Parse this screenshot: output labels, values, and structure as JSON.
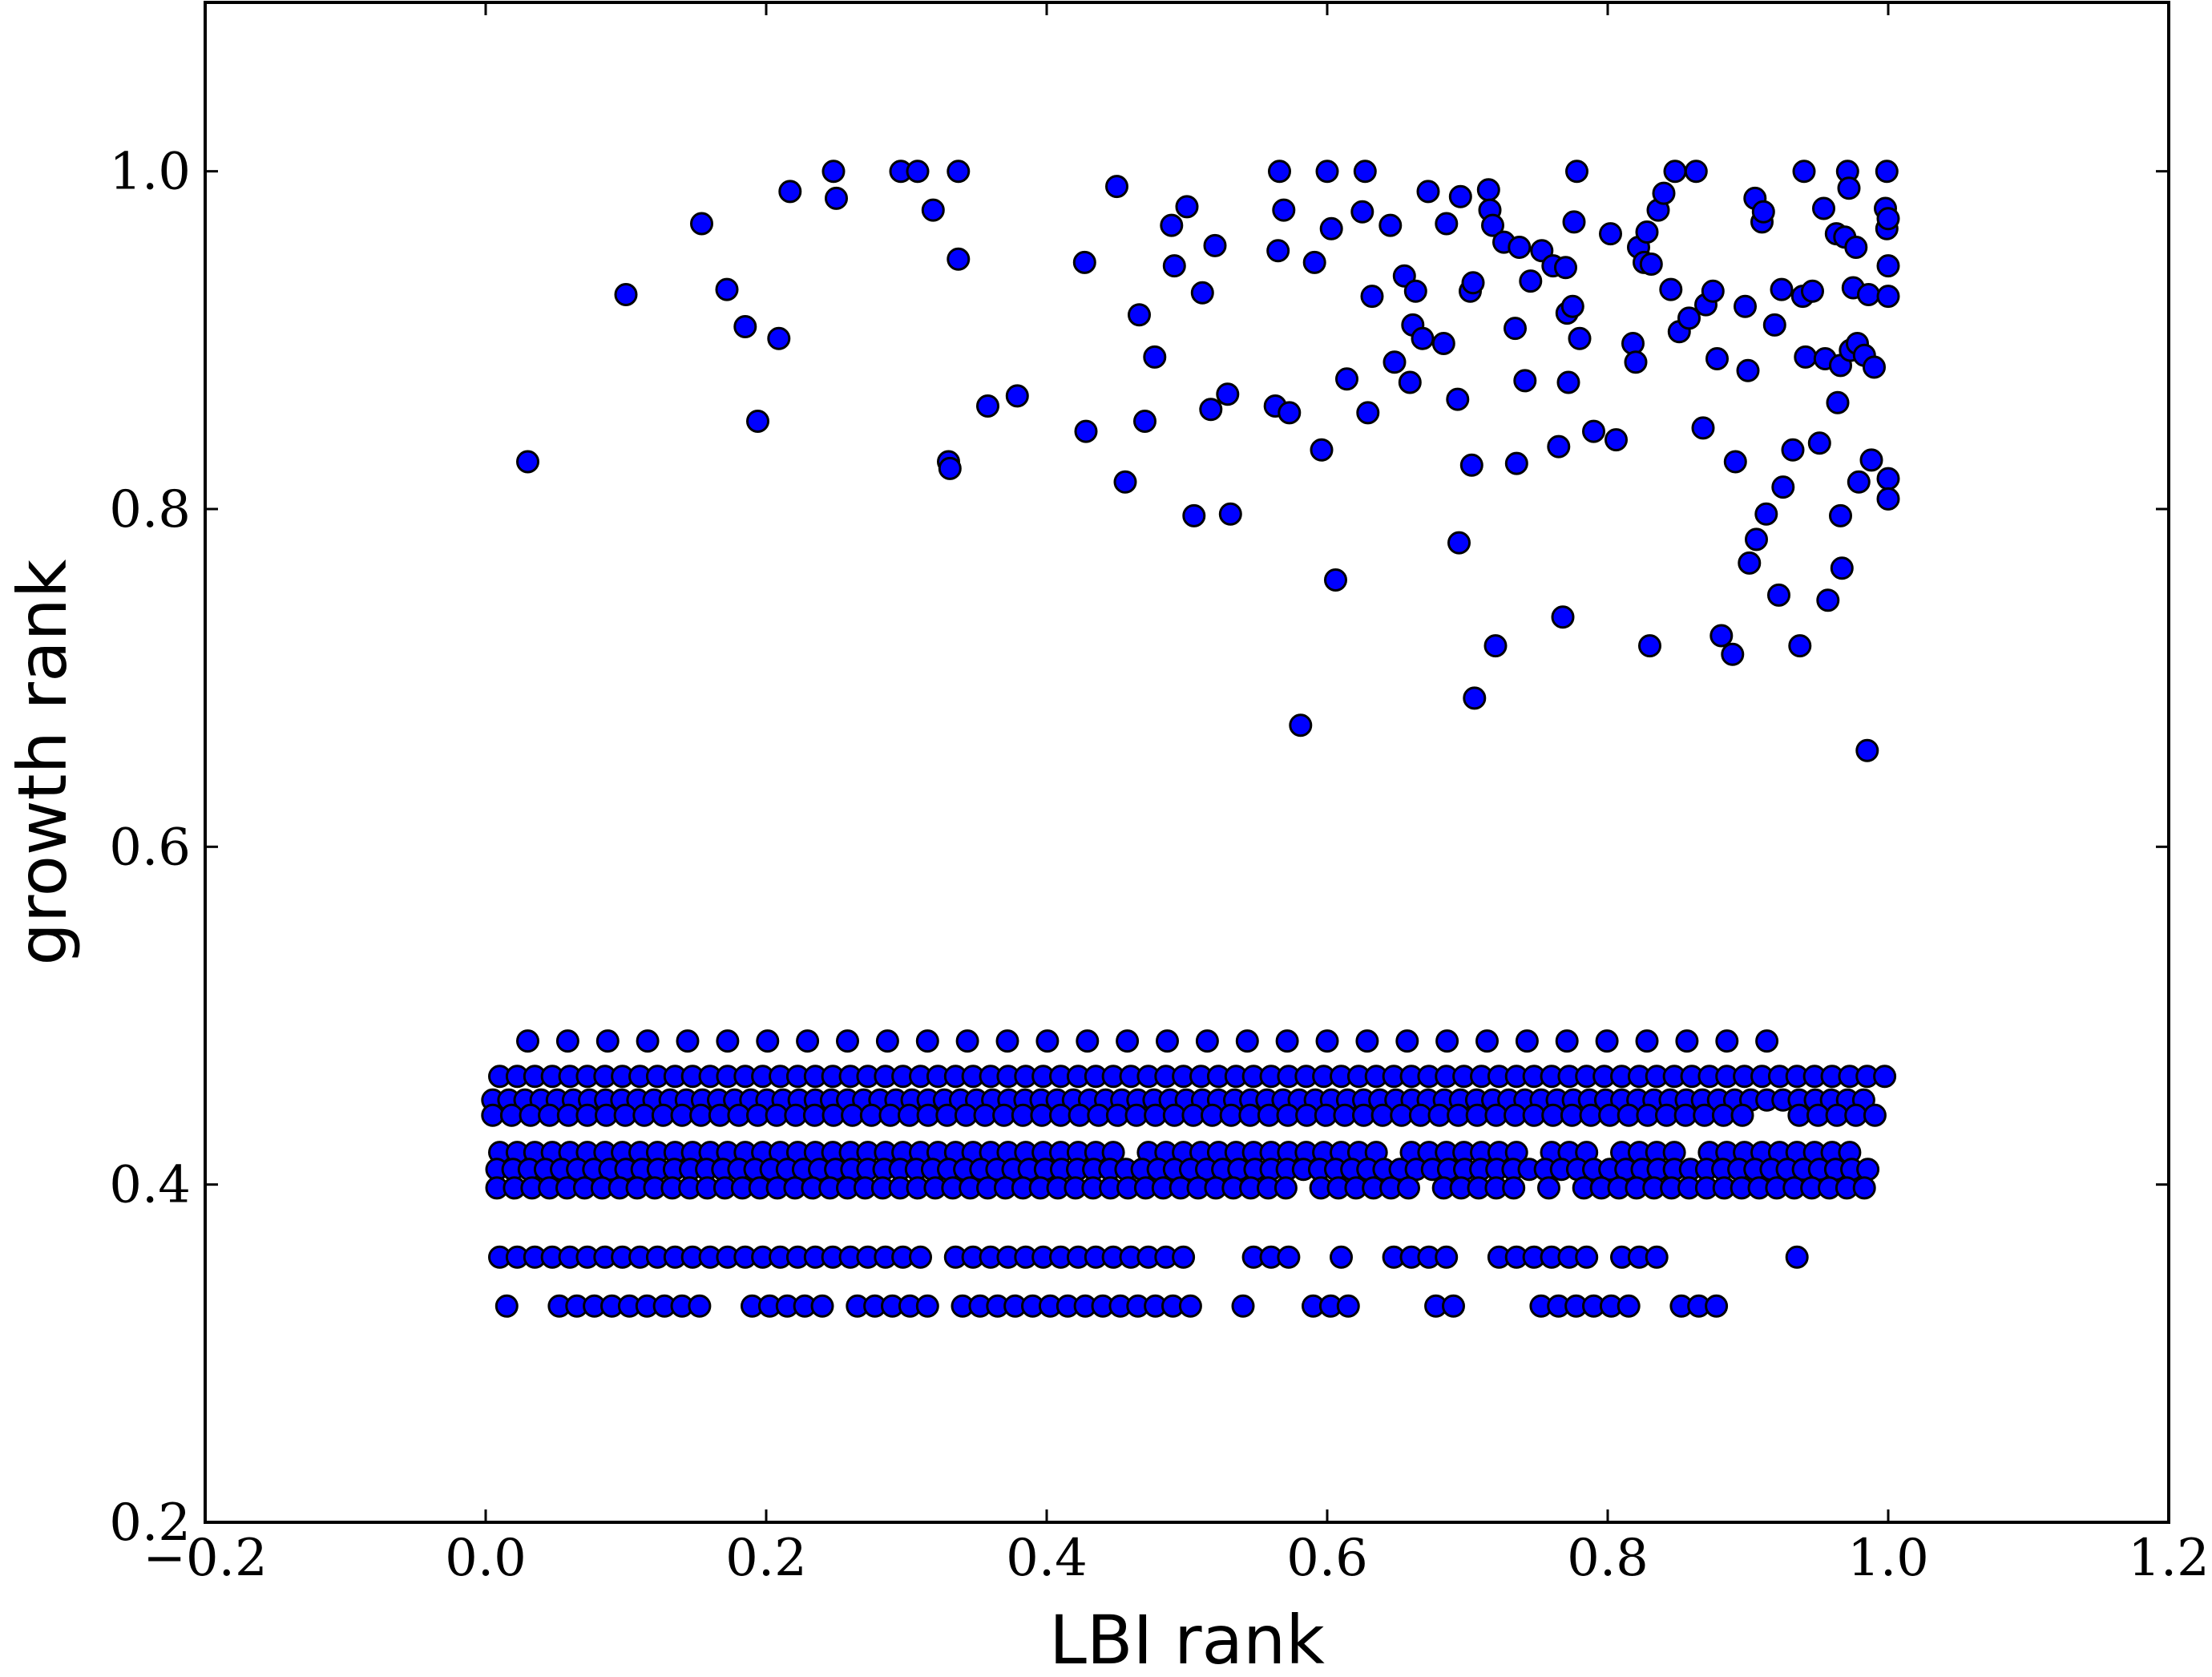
{
  "chart_data": {
    "type": "scatter",
    "title": "",
    "xlabel": "LBI rank",
    "ylabel": "growth rank",
    "xlim": [
      -0.2,
      1.2
    ],
    "ylim": [
      0.2,
      1.1
    ],
    "xticks": [
      -0.2,
      0.0,
      0.2,
      0.4,
      0.6,
      0.8,
      1.0,
      1.2
    ],
    "xtick_labels": [
      "−0.2",
      "0.0",
      "0.2",
      "0.4",
      "0.6",
      "0.8",
      "1.0",
      "1.2"
    ],
    "yticks": [
      0.2,
      0.4,
      0.6,
      0.8,
      1.0
    ],
    "ytick_labels": [
      "0.2",
      "0.4",
      "0.6",
      "0.8",
      "1.0"
    ],
    "grid": false,
    "legend": "none",
    "marker_color": "#0000ff",
    "marker_edge_color": "#000000",
    "points": [
      [
        0.03,
        0.828
      ],
      [
        0.1,
        0.927
      ],
      [
        0.154,
        0.969
      ],
      [
        0.172,
        0.93
      ],
      [
        0.185,
        0.908
      ],
      [
        0.194,
        0.852
      ],
      [
        0.209,
        0.901
      ],
      [
        0.217,
        0.988
      ],
      [
        0.248,
        1.0
      ],
      [
        0.25,
        0.984
      ],
      [
        0.296,
        1.0
      ],
      [
        0.308,
        1.0
      ],
      [
        0.319,
        0.977
      ],
      [
        0.33,
        0.828
      ],
      [
        0.331,
        0.824
      ],
      [
        0.337,
        1.0
      ],
      [
        0.337,
        0.948
      ],
      [
        0.358,
        0.861
      ],
      [
        0.379,
        0.867
      ],
      [
        0.427,
        0.946
      ],
      [
        0.428,
        0.846
      ],
      [
        0.45,
        0.991
      ],
      [
        0.456,
        0.816
      ],
      [
        0.466,
        0.915
      ],
      [
        0.47,
        0.852
      ],
      [
        0.477,
        0.89
      ],
      [
        0.489,
        0.968
      ],
      [
        0.491,
        0.944
      ],
      [
        0.5,
        0.979
      ],
      [
        0.505,
        0.796
      ],
      [
        0.511,
        0.928
      ],
      [
        0.517,
        0.859
      ],
      [
        0.52,
        0.956
      ],
      [
        0.529,
        0.868
      ],
      [
        0.531,
        0.797
      ],
      [
        0.563,
        0.861
      ],
      [
        0.565,
        0.953
      ],
      [
        0.566,
        1.0
      ],
      [
        0.569,
        0.977
      ],
      [
        0.573,
        0.857
      ],
      [
        0.581,
        0.672
      ],
      [
        0.591,
        0.946
      ],
      [
        0.596,
        0.835
      ],
      [
        0.6,
        1.0
      ],
      [
        0.603,
        0.966
      ],
      [
        0.606,
        0.758
      ],
      [
        0.614,
        0.877
      ],
      [
        0.625,
        0.976
      ],
      [
        0.627,
        1.0
      ],
      [
        0.629,
        0.857
      ],
      [
        0.632,
        0.926
      ],
      [
        0.645,
        0.968
      ],
      [
        0.648,
        0.887
      ],
      [
        0.655,
        0.938
      ],
      [
        0.659,
        0.875
      ],
      [
        0.661,
        0.909
      ],
      [
        0.663,
        0.929
      ],
      [
        0.668,
        0.901
      ],
      [
        0.672,
        0.988
      ],
      [
        0.683,
        0.898
      ],
      [
        0.685,
        0.969
      ],
      [
        0.693,
        0.865
      ],
      [
        0.694,
        0.78
      ],
      [
        0.695,
        0.985
      ],
      [
        0.702,
        0.929
      ],
      [
        0.703,
        0.826
      ],
      [
        0.704,
        0.934
      ],
      [
        0.705,
        0.688
      ],
      [
        0.715,
        0.989
      ],
      [
        0.716,
        0.977
      ],
      [
        0.718,
        0.968
      ],
      [
        0.72,
        0.719
      ],
      [
        0.726,
        0.958
      ],
      [
        0.734,
        0.907
      ],
      [
        0.735,
        0.827
      ],
      [
        0.737,
        0.955
      ],
      [
        0.741,
        0.876
      ],
      [
        0.745,
        0.935
      ],
      [
        0.753,
        0.953
      ],
      [
        0.761,
        0.944
      ],
      [
        0.765,
        0.837
      ],
      [
        0.768,
        0.736
      ],
      [
        0.77,
        0.943
      ],
      [
        0.771,
        0.916
      ],
      [
        0.772,
        0.875
      ],
      [
        0.775,
        0.92
      ],
      [
        0.776,
        0.97
      ],
      [
        0.778,
        1.0
      ],
      [
        0.78,
        0.901
      ],
      [
        0.79,
        0.846
      ],
      [
        0.802,
        0.963
      ],
      [
        0.806,
        0.841
      ],
      [
        0.818,
        0.898
      ],
      [
        0.82,
        0.887
      ],
      [
        0.822,
        0.955
      ],
      [
        0.826,
        0.946
      ],
      [
        0.828,
        0.964
      ],
      [
        0.83,
        0.719
      ],
      [
        0.831,
        0.945
      ],
      [
        0.836,
        0.977
      ],
      [
        0.84,
        0.987
      ],
      [
        0.845,
        0.93
      ],
      [
        0.848,
        1.0
      ],
      [
        0.851,
        0.905
      ],
      [
        0.858,
        0.913
      ],
      [
        0.863,
        1.0
      ],
      [
        0.868,
        0.848
      ],
      [
        0.87,
        0.921
      ],
      [
        0.875,
        0.929
      ],
      [
        0.878,
        0.889
      ],
      [
        0.881,
        0.725
      ],
      [
        0.889,
        0.714
      ],
      [
        0.891,
        0.828
      ],
      [
        0.898,
        0.92
      ],
      [
        0.9,
        0.882
      ],
      [
        0.901,
        0.768
      ],
      [
        0.905,
        0.984
      ],
      [
        0.906,
        0.782
      ],
      [
        0.91,
        0.97
      ],
      [
        0.911,
        0.976
      ],
      [
        0.913,
        0.797
      ],
      [
        0.919,
        0.909
      ],
      [
        0.922,
        0.749
      ],
      [
        0.924,
        0.93
      ],
      [
        0.925,
        0.813
      ],
      [
        0.932,
        0.835
      ],
      [
        0.937,
        0.719
      ],
      [
        0.939,
        0.926
      ],
      [
        0.94,
        1.0
      ],
      [
        0.941,
        0.89
      ],
      [
        0.946,
        0.929
      ],
      [
        0.951,
        0.839
      ],
      [
        0.954,
        0.978
      ],
      [
        0.955,
        0.889
      ],
      [
        0.957,
        0.746
      ],
      [
        0.963,
        0.963
      ],
      [
        0.964,
        0.863
      ],
      [
        0.966,
        0.796
      ],
      [
        0.966,
        0.885
      ],
      [
        0.967,
        0.765
      ],
      [
        0.969,
        0.961
      ],
      [
        0.971,
        1.0
      ],
      [
        0.972,
        0.99
      ],
      [
        0.973,
        0.894
      ],
      [
        0.975,
        0.931
      ],
      [
        0.977,
        0.955
      ],
      [
        0.978,
        0.898
      ],
      [
        0.979,
        0.816
      ],
      [
        0.983,
        0.891
      ],
      [
        0.985,
        0.657
      ],
      [
        0.986,
        0.927
      ],
      [
        0.988,
        0.829
      ],
      [
        0.99,
        0.884
      ],
      [
        0.998,
        0.978
      ],
      [
        0.999,
        1.0
      ],
      [
        0.999,
        0.966
      ],
      [
        1.0,
        0.944
      ],
      [
        1.0,
        0.926
      ],
      [
        1.0,
        0.818
      ],
      [
        1.0,
        0.806
      ],
      [
        1.0,
        0.972
      ]
    ],
    "bands": [
      {
        "y": 0.485,
        "x_start": 0.03,
        "x_end": 0.94,
        "step": 0.0285,
        "gaps": []
      },
      {
        "y": 0.464,
        "x_start": 0.01,
        "x_end": 1.0,
        "step": 0.0125,
        "gaps": []
      },
      {
        "y": 0.45,
        "x_start": 0.005,
        "x_end": 0.99,
        "step": 0.0115,
        "gaps": []
      },
      {
        "y": 0.441,
        "x_start": 0.005,
        "x_end": 1.0,
        "step": 0.0135,
        "gaps": [
          [
            0.905,
            0.93
          ]
        ]
      },
      {
        "y": 0.419,
        "x_start": 0.01,
        "x_end": 0.975,
        "step": 0.0125,
        "gaps": [
          [
            0.46,
            0.47
          ],
          [
            0.64,
            0.65
          ],
          [
            0.74,
            0.75
          ],
          [
            0.79,
            0.8
          ],
          [
            0.85,
            0.86
          ]
        ]
      },
      {
        "y": 0.409,
        "x_start": 0.008,
        "x_end": 0.99,
        "step": 0.0115,
        "gaps": []
      },
      {
        "y": 0.398,
        "x_start": 0.008,
        "x_end": 0.99,
        "step": 0.0125,
        "gaps": [
          [
            0.16,
            0.17
          ],
          [
            0.58,
            0.59
          ],
          [
            0.635,
            0.645
          ],
          [
            0.665,
            0.68
          ],
          [
            0.745,
            0.755
          ],
          [
            0.77,
            0.78
          ]
        ]
      },
      {
        "y": 0.357,
        "x_start": 0.01,
        "x_end": 0.945,
        "step": 0.0125,
        "gaps": [
          [
            0.205,
            0.21
          ],
          [
            0.315,
            0.33
          ],
          [
            0.5,
            0.54
          ],
          [
            0.575,
            0.6
          ],
          [
            0.62,
            0.64
          ],
          [
            0.695,
            0.72
          ],
          [
            0.76,
            0.77
          ],
          [
            0.79,
            0.805
          ],
          [
            0.825,
            0.83
          ],
          [
            0.845,
            0.93
          ]
        ]
      },
      {
        "y": 0.328,
        "x_start": 0.015,
        "x_end": 1.0,
        "step": 0.0125,
        "gaps": [
          [
            0.025,
            0.04
          ],
          [
            0.165,
            0.18
          ],
          [
            0.245,
            0.26
          ],
          [
            0.32,
            0.33
          ],
          [
            0.505,
            0.54
          ],
          [
            0.55,
            0.585
          ],
          [
            0.615,
            0.665
          ],
          [
            0.69,
            0.74
          ],
          [
            0.82,
            0.85
          ],
          [
            0.88,
            0.995
          ]
        ]
      }
    ]
  }
}
